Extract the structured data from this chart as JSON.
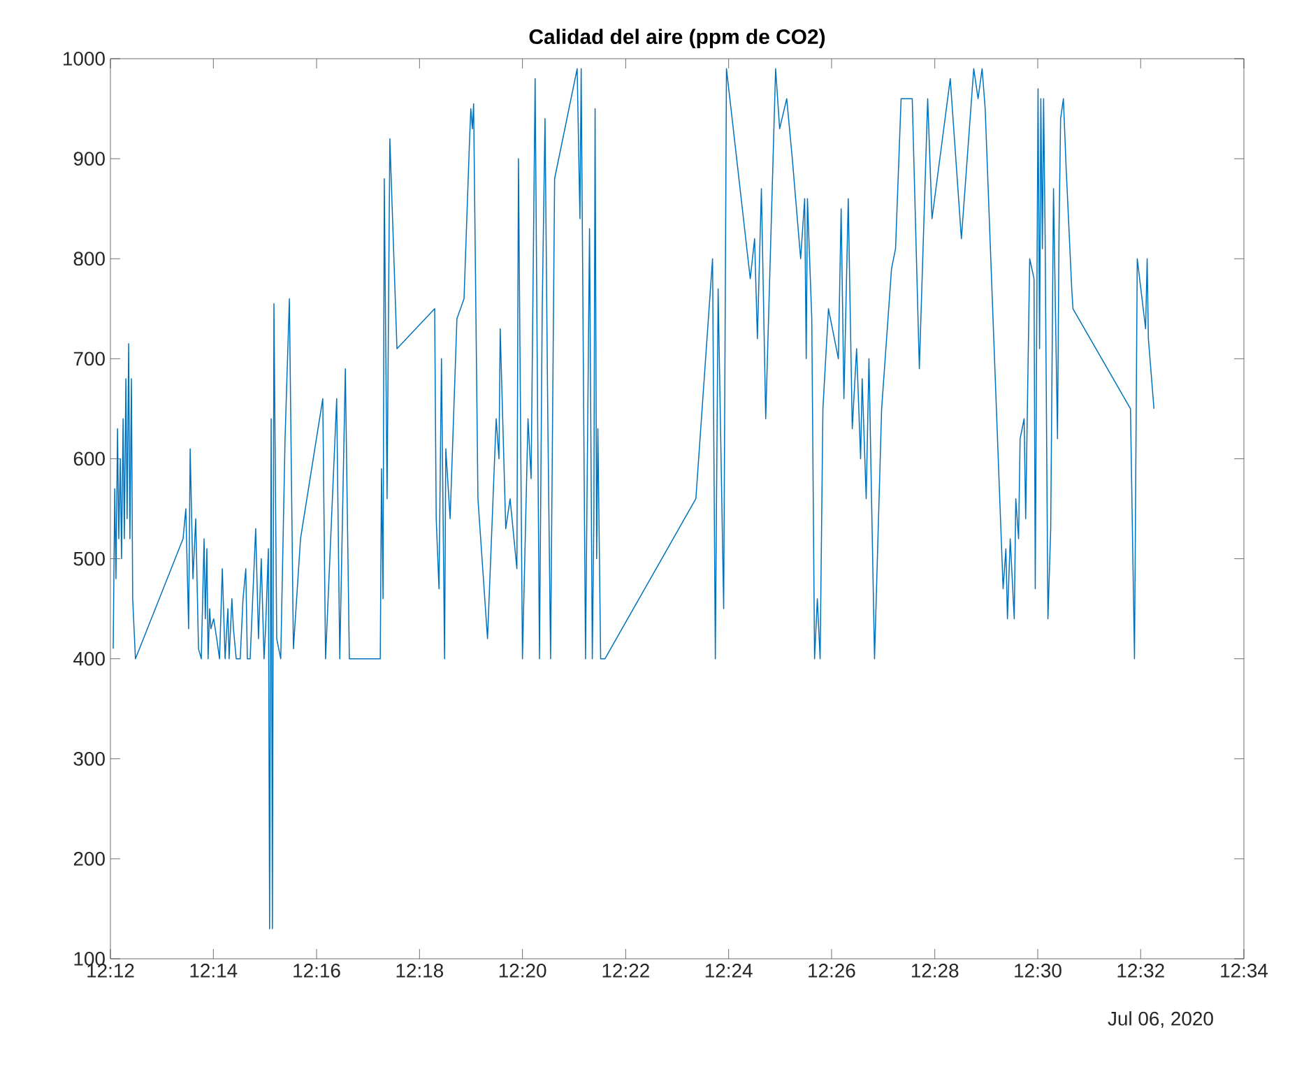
{
  "chart_data": {
    "type": "line",
    "title": "Calidad del aire (ppm de CO2)",
    "annotations": [
      "Jul 06, 2020"
    ],
    "x": [
      12.2009,
      12.2014,
      12.2018,
      12.2023,
      12.2027,
      12.2032,
      12.2036,
      12.2041,
      12.2045,
      12.205,
      12.2054,
      12.2059,
      12.2063,
      12.2068,
      12.2072,
      12.2081,
      12.2235,
      12.2244,
      12.2253,
      12.2258,
      12.2267,
      12.2276,
      12.2285,
      12.2294,
      12.2303,
      12.2307,
      12.2312,
      12.2316,
      12.2321,
      12.2325,
      12.2334,
      12.2344,
      12.2353,
      12.2357,
      12.2362,
      12.2371,
      12.238,
      12.2384,
      12.2393,
      12.2398,
      12.2407,
      12.242,
      12.2429,
      12.2438,
      12.2443,
      12.2452,
      12.247,
      12.2479,
      12.2488,
      12.2497,
      12.2502,
      12.2511,
      12.2515,
      12.252,
      12.2524,
      12.2529,
      12.2538,
      12.2551,
      12.2565,
      12.2579,
      12.2592,
      12.2615,
      12.2687,
      12.2696,
      12.2732,
      12.2742,
      12.276,
      12.2773,
      12.2873,
      12.2877,
      12.2882,
      12.2886,
      12.2895,
      12.2904,
      12.2927,
      12.3049,
      12.3054,
      12.3063,
      12.3071,
      12.3081,
      12.3085,
      12.3099,
      12.3121,
      12.3144,
      12.3162,
      12.3166,
      12.3171,
      12.3175,
      12.3189,
      12.322,
      12.3248,
      12.3257,
      12.3261,
      12.3279,
      12.3293,
      12.3315,
      12.332,
      12.3333,
      12.3351,
      12.3361,
      12.3374,
      12.3388,
      12.3397,
      12.3406,
      12.3415,
      12.3424,
      12.3437,
      12.351,
      12.3519,
      12.3523,
      12.3537,
      12.355,
      12.3559,
      12.3564,
      12.3568,
      12.3573,
      12.3577,
      12.3586,
      12.36,
      12.3894,
      12.3948,
      12.3957,
      12.3966,
      12.3984,
      12.3993,
      12.407,
      12.4084,
      12.4093,
      12.4106,
      12.412,
      12.4152,
      12.4165,
      12.4188,
      12.4206,
      12.4233,
      12.4246,
      12.4251,
      12.4255,
      12.4269,
      12.4278,
      12.4287,
      12.4296,
      12.4305,
      12.4323,
      12.4355,
      12.4364,
      12.4373,
      12.4387,
      12.44,
      12.4414,
      12.4427,
      12.4432,
      12.4445,
      12.4454,
      12.4472,
      12.4495,
      12.4527,
      12.454,
      12.4558,
      12.4594,
      12.4617,
      12.4644,
      12.4658,
      12.4717,
      12.4753,
      12.4793,
      12.4807,
      12.482,
      12.483,
      12.4888,
      12.4897,
      12.4902,
      12.4911,
      12.4924,
      12.4929,
      12.4938,
      12.4943,
      12.4956,
      12.4961,
      12.4974,
      12.4988,
      12.4992,
      12.5001,
      12.5006,
      12.501,
      12.5015,
      12.5019,
      12.5024,
      12.5033,
      12.5042,
      12.5051,
      12.5064,
      12.5069,
      12.5074,
      12.5083,
      12.5092,
      12.511,
      12.5114,
      12.53,
      12.5313,
      12.5322,
      12.5349,
      12.5354,
      12.5358,
      12.5376
    ],
    "series": [
      {
        "color": "#0072bd",
        "values": [
          410,
          570,
          480,
          630,
          520,
          600,
          500,
          640,
          520,
          680,
          540,
          715,
          520,
          680,
          460,
          400,
          520,
          550,
          430,
          610,
          480,
          540,
          410,
          400,
          520,
          440,
          510,
          400,
          450,
          430,
          440,
          420,
          400,
          440,
          490,
          400,
          450,
          400,
          460,
          430,
          400,
          400,
          460,
          490,
          400,
          400,
          530,
          420,
          500,
          400,
          430,
          510,
          130,
          640,
          130,
          755,
          420,
          400,
          620,
          760,
          410,
          520,
          660,
          400,
          660,
          400,
          690,
          400,
          400,
          590,
          460,
          880,
          560,
          920,
          710,
          750,
          540,
          470,
          700,
          400,
          610,
          540,
          740,
          760,
          920,
          950,
          930,
          955,
          560,
          420,
          640,
          600,
          730,
          530,
          560,
          490,
          900,
          400,
          640,
          580,
          980,
          400,
          750,
          940,
          640,
          400,
          880,
          990,
          840,
          990,
          400,
          830,
          400,
          540,
          950,
          500,
          630,
          400,
          400,
          560,
          800,
          400,
          770,
          450,
          990,
          780,
          820,
          720,
          870,
          640,
          990,
          930,
          960,
          900,
          800,
          860,
          700,
          860,
          740,
          400,
          460,
          400,
          650,
          750,
          700,
          850,
          660,
          860,
          630,
          710,
          600,
          680,
          560,
          700,
          400,
          650,
          790,
          810,
          960,
          960,
          690,
          960,
          840,
          980,
          820,
          990,
          960,
          990,
          950,
          470,
          510,
          440,
          520,
          440,
          560,
          520,
          620,
          640,
          540,
          800,
          780,
          470,
          970,
          710,
          960,
          810,
          960,
          820,
          440,
          530,
          870,
          620,
          830,
          940,
          960,
          890,
          770,
          750,
          650,
          400,
          800,
          730,
          800,
          720,
          650
        ]
      }
    ],
    "xlim": [
      12.2,
      12.5667
    ],
    "xticks": [
      {
        "value": 12.2,
        "label": "12:12"
      },
      {
        "value": 12.2333,
        "label": "12:14"
      },
      {
        "value": 12.2667,
        "label": "12:16"
      },
      {
        "value": 12.3,
        "label": "12:18"
      },
      {
        "value": 12.3333,
        "label": "12:20"
      },
      {
        "value": 12.3667,
        "label": "12:22"
      },
      {
        "value": 12.4,
        "label": "12:24"
      },
      {
        "value": 12.4333,
        "label": "12:26"
      },
      {
        "value": 12.4667,
        "label": "12:28"
      },
      {
        "value": 12.5,
        "label": "12:30"
      },
      {
        "value": 12.5333,
        "label": "12:32"
      },
      {
        "value": 12.5667,
        "label": "12:34"
      }
    ],
    "ylim": [
      100,
      1000
    ],
    "yticks": [
      100,
      200,
      300,
      400,
      500,
      600,
      700,
      800,
      900,
      1000
    ]
  }
}
